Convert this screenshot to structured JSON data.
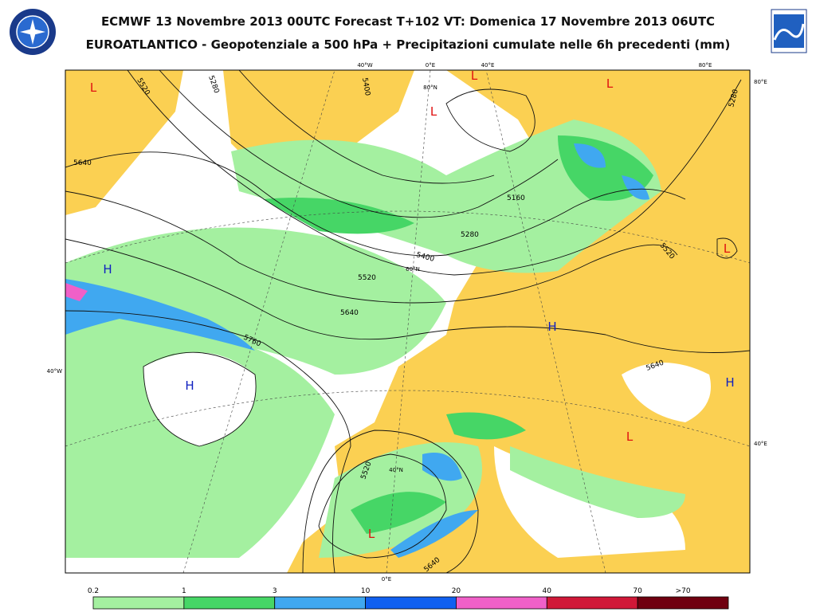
{
  "header": {
    "title": "ECMWF 13 Novembre 2013 00UTC Forecast T+102 VT: Domenica 17 Novembre 2013 06UTC",
    "subtitle": "EUROATLANTICO - Geopotenziale a 500 hPa + Precipitazioni cumulate nelle 6h precedenti (mm)"
  },
  "map": {
    "contour_labels": [
      "5520",
      "5400",
      "5280",
      "5640",
      "5160",
      "5280",
      "5400",
      "5520",
      "5640",
      "5760",
      "5520",
      "5640",
      "5520",
      "5640",
      "5280"
    ],
    "centers": [
      {
        "label": "L",
        "color": "#e01010"
      },
      {
        "label": "L",
        "color": "#e01010"
      },
      {
        "label": "L",
        "color": "#e01010"
      },
      {
        "label": "L",
        "color": "#e01010"
      },
      {
        "label": "L",
        "color": "#e01010"
      },
      {
        "label": "L",
        "color": "#e01010"
      },
      {
        "label": "L",
        "color": "#e01010"
      },
      {
        "label": "H",
        "color": "#1020c0"
      },
      {
        "label": "H",
        "color": "#1020c0"
      },
      {
        "label": "H",
        "color": "#1020c0"
      },
      {
        "label": "H",
        "color": "#1020c0"
      }
    ],
    "graticule_labels": [
      "40°W",
      "0°E",
      "40°E",
      "80°E",
      "80°E",
      "40°E",
      "40°W",
      "0°E",
      "80°N",
      "60°N",
      "40°N"
    ]
  },
  "legend": {
    "ticks": [
      "0.2",
      "1",
      "3",
      "10",
      "20",
      "40",
      "70",
      ">70"
    ],
    "colors": [
      "#a4f0a0",
      "#46d666",
      "#40a8f0",
      "#1060f0",
      "#f060c8",
      "#d01838",
      "#700010"
    ]
  }
}
